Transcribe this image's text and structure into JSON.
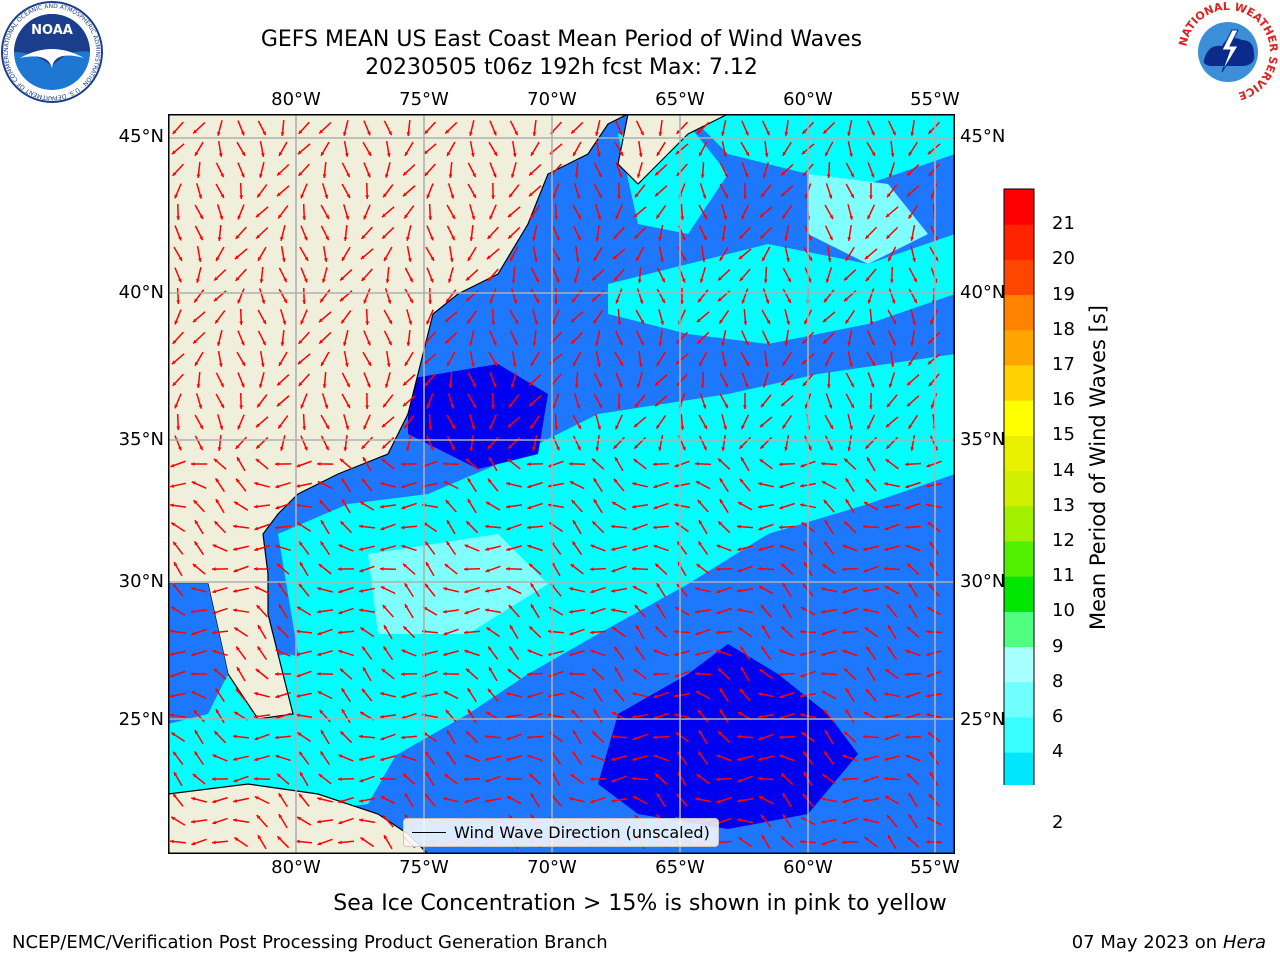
{
  "header": {
    "title_line1": "GEFS MEAN US East Coast Mean Period of Wind Waves",
    "title_line2": "20230505 t06z 192h fcst   Max: 7.12"
  },
  "logos": {
    "noaa": {
      "text": "NOAA",
      "ring_text": "NATIONAL OCEANIC AND ATMOSPHERIC ADMINISTRATION · U.S. DEPARTMENT OF COMMERCE"
    },
    "nws": {
      "ring_text": "NATIONAL WEATHER SERVICE"
    }
  },
  "map": {
    "lon_labels": [
      "80°W",
      "75°W",
      "70°W",
      "65°W",
      "60°W",
      "55°W"
    ],
    "lat_labels": [
      "45°N",
      "40°N",
      "35°N",
      "30°N",
      "25°N"
    ],
    "colors": {
      "land": "#efefdc",
      "ocean_low": "#0000f0",
      "ocean_mid": "#1e78ff",
      "ocean_high": "#00ffff",
      "ocean_light": "#80ffff",
      "arrow": "#ff0000",
      "grid": "#b0b0b0"
    },
    "legend_label": "Wind Wave Direction (unscaled)"
  },
  "colorbar": {
    "title": "Mean Period of Wind Waves [s]",
    "ticks": [
      "2",
      "4",
      "6",
      "8",
      "9",
      "10",
      "11",
      "12",
      "13",
      "14",
      "15",
      "16",
      "17",
      "18",
      "19",
      "20",
      "21"
    ],
    "colors": [
      "#1e78ff",
      "#00e6ff",
      "#38ffff",
      "#70ffff",
      "#a8ffff",
      "#50ff80",
      "#00e600",
      "#50f000",
      "#a0f000",
      "#d0f000",
      "#e8f000",
      "#ffff00",
      "#ffd200",
      "#ffa500",
      "#ff8200",
      "#ff4600",
      "#ff2300",
      "#ff0000"
    ],
    "extend_color": "#0000f0"
  },
  "notes": {
    "sea_ice": "Sea Ice Concentration > 15% is shown in pink to yellow"
  },
  "footer": {
    "left": "NCEP/EMC/Verification Post Processing Product Generation Branch",
    "date": "07 May 2023 on",
    "machine": "Hera"
  }
}
